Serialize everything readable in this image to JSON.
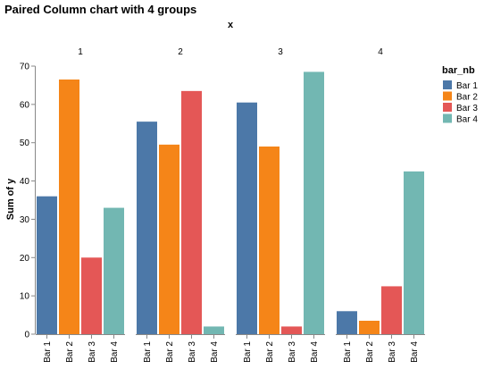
{
  "chart_data": {
    "type": "bar",
    "title": "Paired Column chart with 4 groups",
    "facet_title": "x",
    "facets": [
      "1",
      "2",
      "3",
      "4"
    ],
    "categories": [
      "Bar 1",
      "Bar 2",
      "Bar 3",
      "Bar 4"
    ],
    "series": [
      {
        "facet": "1",
        "values": [
          36,
          66.5,
          20,
          33
        ]
      },
      {
        "facet": "2",
        "values": [
          55.5,
          49.5,
          63.5,
          2
        ]
      },
      {
        "facet": "3",
        "values": [
          60.5,
          49,
          2,
          68.5
        ]
      },
      {
        "facet": "4",
        "values": [
          6,
          3.5,
          12.5,
          42.5
        ]
      }
    ],
    "ylabel": "Sum of y",
    "ylim": [
      0,
      70
    ],
    "yticks": [
      0,
      10,
      20,
      30,
      40,
      50,
      60,
      70
    ],
    "grid": false,
    "legend": {
      "title": "bar_nb",
      "placement": "right",
      "entries": [
        "Bar 1",
        "Bar 2",
        "Bar 3",
        "Bar 4"
      ]
    },
    "colors": [
      "#4c78a8",
      "#f58518",
      "#e45756",
      "#72b7b2"
    ]
  }
}
